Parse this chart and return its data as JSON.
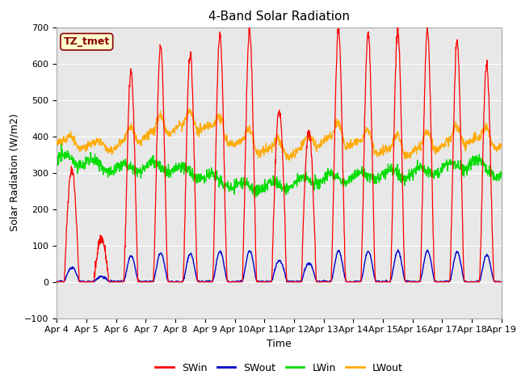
{
  "title": "4-Band Solar Radiation",
  "xlabel": "Time",
  "ylabel": "Solar Radiation (W/m2)",
  "ylim": [
    -100,
    700
  ],
  "colors": {
    "SWin": "#ff0000",
    "SWout": "#0000cc",
    "LWin": "#00dd00",
    "LWout": "#ffaa00"
  },
  "annotation": "TZ_tmet",
  "annotation_facecolor": "#ffffcc",
  "annotation_edgecolor": "#8b0000",
  "bg_color": "#e8e8e8",
  "xtick_labels": [
    "Apr 4",
    "Apr 5",
    "Apr 6",
    "Apr 7",
    "Apr 8",
    "Apr 9",
    "Apr 10",
    "Apr 11",
    "Apr 12",
    "Apr 13",
    "Apr 14",
    "Apr 15",
    "Apr 16",
    "Apr 17",
    "Apr 18",
    "Apr 19"
  ],
  "title_fontsize": 11,
  "axis_label_fontsize": 9,
  "tick_fontsize": 8,
  "legend_fontsize": 9
}
